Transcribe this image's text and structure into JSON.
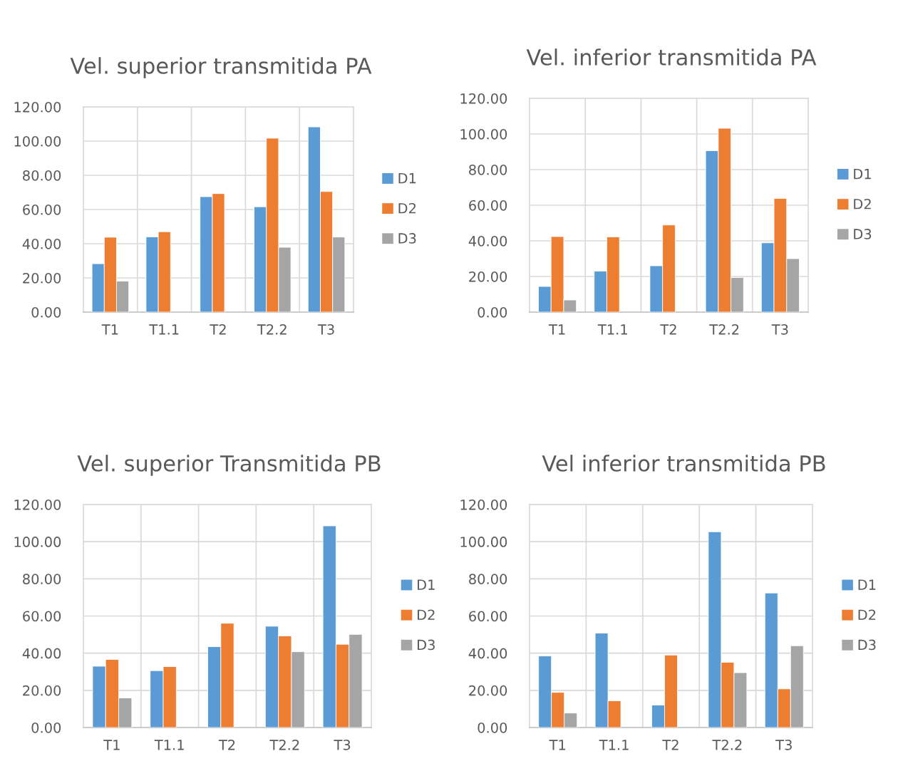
{
  "chart_data": [
    {
      "type": "bar",
      "title": "Vel. superior transmitida PA",
      "categories": [
        "T1",
        "T1.1",
        "T2",
        "T2.2",
        "T3"
      ],
      "series": [
        {
          "name": "D1",
          "color": "#5b9bd5",
          "values": [
            28.3,
            44.0,
            67.5,
            61.6,
            108.3
          ]
        },
        {
          "name": "D2",
          "color": "#ed7d31",
          "values": [
            43.8,
            47.0,
            69.3,
            101.7,
            70.5
          ]
        },
        {
          "name": "D3",
          "color": "#a5a5a5",
          "values": [
            18.1,
            null,
            null,
            37.9,
            43.9
          ]
        }
      ],
      "ylim": [
        0,
        120
      ],
      "yticks": [
        {
          "value": 0,
          "label": "0.00"
        },
        {
          "value": 20,
          "label": "20.00"
        },
        {
          "value": 40,
          "label": "40.00"
        },
        {
          "value": 60,
          "label": "60.00"
        },
        {
          "value": 80,
          "label": "80.00"
        },
        {
          "value": 100,
          "label": "100.00"
        },
        {
          "value": 120,
          "label": "120.00"
        }
      ],
      "grid": true,
      "legend": "right"
    },
    {
      "type": "bar",
      "title": "Vel. inferior transmitida PA",
      "categories": [
        "T1",
        "T1.1",
        "T2",
        "T2.2",
        "T3"
      ],
      "series": [
        {
          "name": "D1",
          "color": "#5b9bd5",
          "values": [
            14.4,
            23.0,
            26.0,
            90.6,
            38.9
          ]
        },
        {
          "name": "D2",
          "color": "#ed7d31",
          "values": [
            42.4,
            42.2,
            48.9,
            103.2,
            63.8
          ]
        },
        {
          "name": "D3",
          "color": "#a5a5a5",
          "values": [
            6.8,
            null,
            null,
            19.4,
            30.0
          ]
        }
      ],
      "ylim": [
        0,
        120
      ],
      "yticks": [
        {
          "value": 0,
          "label": "0.00"
        },
        {
          "value": 20,
          "label": "20.00"
        },
        {
          "value": 40,
          "label": "40.00"
        },
        {
          "value": 60,
          "label": "60.00"
        },
        {
          "value": 80,
          "label": "80.00"
        },
        {
          "value": 100,
          "label": "100.00"
        },
        {
          "value": 120,
          "label": "120.00"
        }
      ],
      "grid": true,
      "legend": "right"
    },
    {
      "type": "bar",
      "title": "Vel. superior Transmitida PB",
      "categories": [
        "T1",
        "T1.1",
        "T2",
        "T2.2",
        "T3"
      ],
      "series": [
        {
          "name": "D1",
          "color": "#5b9bd5",
          "values": [
            33.0,
            30.6,
            43.5,
            54.5,
            108.5
          ]
        },
        {
          "name": "D2",
          "color": "#ed7d31",
          "values": [
            36.6,
            32.8,
            56.1,
            49.3,
            44.8
          ]
        },
        {
          "name": "D3",
          "color": "#a5a5a5",
          "values": [
            15.9,
            null,
            null,
            40.8,
            50.1
          ]
        }
      ],
      "ylim": [
        0,
        120
      ],
      "yticks": [
        {
          "value": 0,
          "label": "0.00"
        },
        {
          "value": 20,
          "label": "20.00"
        },
        {
          "value": 40,
          "label": "40.00"
        },
        {
          "value": 60,
          "label": "60.00"
        },
        {
          "value": 80,
          "label": "80.00"
        },
        {
          "value": 100,
          "label": "100.00"
        },
        {
          "value": 120,
          "label": "120.00"
        }
      ],
      "grid": true,
      "legend": "right"
    },
    {
      "type": "bar",
      "title": "Vel inferior transmitida PB",
      "categories": [
        "T1",
        "T1.1",
        "T2",
        "T2.2",
        "T3"
      ],
      "series": [
        {
          "name": "D1",
          "color": "#5b9bd5",
          "values": [
            38.5,
            50.8,
            12.1,
            105.3,
            72.4
          ]
        },
        {
          "name": "D2",
          "color": "#ed7d31",
          "values": [
            18.9,
            14.4,
            39.0,
            35.1,
            20.8
          ]
        },
        {
          "name": "D3",
          "color": "#a5a5a5",
          "values": [
            7.8,
            null,
            null,
            29.5,
            44.0
          ]
        }
      ],
      "ylim": [
        0,
        120
      ],
      "yticks": [
        {
          "value": 0,
          "label": "0.00"
        },
        {
          "value": 20,
          "label": "20.00"
        },
        {
          "value": 40,
          "label": "40.00"
        },
        {
          "value": 60,
          "label": "60.00"
        },
        {
          "value": 80,
          "label": "80.00"
        },
        {
          "value": 100,
          "label": "100.00"
        },
        {
          "value": 120,
          "label": "120.00"
        }
      ],
      "grid": true,
      "legend": "right"
    }
  ]
}
